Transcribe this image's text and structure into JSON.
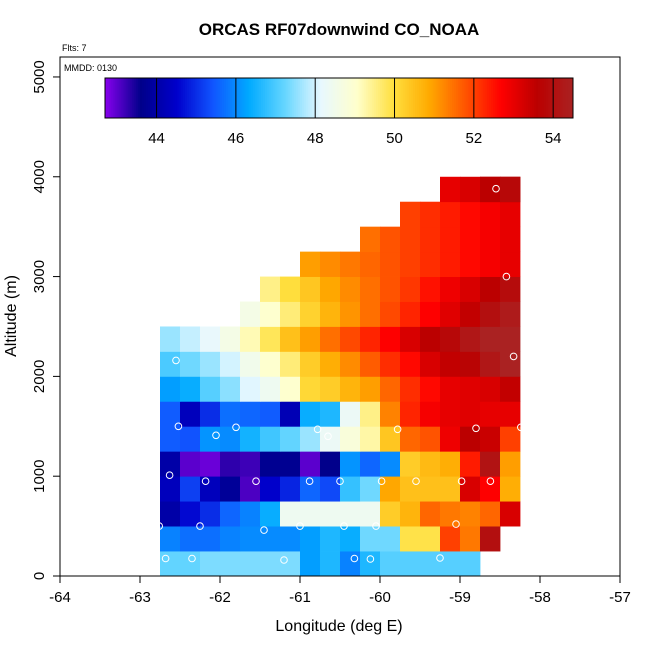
{
  "chart_data": {
    "type": "heatmap",
    "title": "ORCAS RF07downwind CO_NOAA",
    "flts_label": "Flts: 7",
    "mmdd_label": "MMDD: 0130",
    "xlabel": "Longitude (deg E)",
    "ylabel": "Altitude (m)",
    "xlim": [
      -64,
      -57
    ],
    "ylim": [
      0,
      5200
    ],
    "x_ticks": [
      -64,
      -63,
      -62,
      -61,
      -60,
      -59,
      -58,
      -57
    ],
    "y_ticks": [
      0,
      1000,
      2000,
      3000,
      4000,
      5000
    ],
    "cell_width_deg": 0.25,
    "cell_height_m": 250,
    "colorbar": {
      "range": [
        42.7,
        54.5
      ],
      "ticks": [
        44,
        46,
        48,
        50,
        52,
        54
      ],
      "colors": [
        "#8800ee",
        "#00008a",
        "#0000cc",
        "#1155ff",
        "#00aaff",
        "#66d6ff",
        "#e8f8ff",
        "#ffffcc",
        "#ffe040",
        "#ffaa00",
        "#ff5500",
        "#ff0000",
        "#bb0000",
        "#aa2222"
      ]
    },
    "rows": [
      {
        "alt": 125,
        "x0": -62.75,
        "values": [
          47.2,
          47.2,
          47.4,
          47.4,
          47.4,
          47.4,
          47.4,
          46.2,
          46.6,
          45.9,
          46.6,
          47.1,
          47.1,
          47.1,
          47.1,
          47.1
        ]
      },
      {
        "alt": 375,
        "x0": -62.75,
        "values": [
          45.9,
          45.7,
          45.7,
          45.9,
          46.0,
          46.0,
          46.0,
          46.2,
          46.6,
          46.4,
          47.3,
          47.3,
          49.9,
          49.9,
          52.0,
          51.4,
          54.0
        ]
      },
      {
        "alt": 625,
        "x0": -62.75,
        "values": [
          44.0,
          44.6,
          45.0,
          45.6,
          45.9,
          46.4,
          48.4,
          48.4,
          48.4,
          48.4,
          48.4,
          50.3,
          50.7,
          51.6,
          51.4,
          51.3,
          51.6,
          53.2
        ]
      },
      {
        "alt": 875,
        "x0": -62.75,
        "values": [
          44.3,
          45.2,
          44.3,
          43.8,
          43.1,
          44.5,
          44.9,
          45.6,
          45.3,
          46.8,
          47.3,
          50.9,
          50.5,
          50.5,
          50.5,
          53.2,
          52.7,
          50.8
        ]
      },
      {
        "alt": 1125,
        "x0": -62.75,
        "values": [
          44.0,
          43.0,
          42.9,
          43.3,
          43.2,
          43.7,
          43.7,
          43.0,
          43.6,
          46.1,
          45.6,
          46.0,
          50.3,
          50.6,
          50.8,
          52.4,
          54.1,
          51.0
        ]
      },
      {
        "alt": 1375,
        "x0": -62.75,
        "values": [
          45.5,
          45.4,
          46.1,
          46.0,
          46.5,
          46.9,
          47.2,
          47.6,
          48.3,
          48.8,
          49.3,
          50.4,
          51.6,
          51.8,
          52.9,
          53.6,
          53.4,
          52.0
        ]
      },
      {
        "alt": 1625,
        "x0": -62.75,
        "values": [
          45.5,
          44.3,
          45.0,
          45.7,
          45.6,
          45.5,
          44.2,
          46.4,
          46.6,
          48.3,
          49.5,
          51.3,
          52.3,
          52.8,
          53.0,
          53.1,
          53.0,
          53.0
        ]
      },
      {
        "alt": 1875,
        "x0": -62.75,
        "values": [
          46.2,
          46.4,
          47.1,
          47.5,
          48.1,
          48.4,
          49.0,
          50.1,
          50.3,
          50.7,
          51.0,
          51.6,
          52.2,
          52.6,
          53.0,
          53.1,
          53.2,
          53.5
        ]
      },
      {
        "alt": 2125,
        "x0": -62.75,
        "values": [
          47.0,
          47.3,
          47.6,
          48.0,
          48.5,
          49.0,
          49.6,
          50.3,
          50.8,
          51.2,
          51.7,
          52.2,
          52.6,
          53.2,
          53.5,
          53.7,
          54.2,
          54.5
        ]
      },
      {
        "alt": 2375,
        "x0": -62.75,
        "values": [
          47.6,
          47.9,
          48.2,
          48.6,
          49.2,
          49.8,
          50.5,
          51.0,
          51.5,
          51.9,
          52.3,
          52.7,
          53.2,
          53.6,
          53.8,
          54.2,
          54.5,
          54.5
        ]
      },
      {
        "alt": 2625,
        "x0": -61.75,
        "values": [
          48.6,
          49.0,
          49.6,
          50.2,
          50.7,
          51.1,
          51.5,
          51.9,
          52.3,
          52.7,
          53.1,
          53.5,
          54.0,
          54.3
        ]
      },
      {
        "alt": 2875,
        "x0": -61.5,
        "values": [
          49.5,
          50.0,
          50.4,
          50.9,
          51.2,
          51.5,
          51.8,
          52.1,
          52.5,
          52.9,
          53.2,
          53.6,
          53.9
        ]
      },
      {
        "alt": 3125,
        "x0": -61.0,
        "values": [
          51.0,
          51.2,
          51.4,
          51.6,
          51.8,
          52.0,
          52.2,
          52.4,
          52.6,
          52.8,
          53.0
        ]
      },
      {
        "alt": 3375,
        "x0": -60.25,
        "values": [
          51.5,
          51.8,
          52.0,
          52.2,
          52.4,
          52.6,
          52.8,
          53.0
        ]
      },
      {
        "alt": 3625,
        "x0": -59.75,
        "values": [
          52.0,
          52.2,
          52.4,
          52.6,
          52.8,
          53.0
        ]
      },
      {
        "alt": 3875,
        "x0": -59.25,
        "values": [
          53.0,
          53.2,
          53.4,
          53.6
        ]
      },
      {
        "alt": 3875,
        "x0": -58.75,
        "values": [
          53.6,
          53.8
        ]
      }
    ],
    "points": [
      {
        "lon": -62.76,
        "alt": 500
      },
      {
        "lon": -62.68,
        "alt": 175
      },
      {
        "lon": -62.63,
        "alt": 1010
      },
      {
        "lon": -62.55,
        "alt": 2160
      },
      {
        "lon": -62.52,
        "alt": 1500
      },
      {
        "lon": -62.35,
        "alt": 175
      },
      {
        "lon": -62.25,
        "alt": 500
      },
      {
        "lon": -62.18,
        "alt": 950
      },
      {
        "lon": -62.05,
        "alt": 1410
      },
      {
        "lon": -61.8,
        "alt": 1490
      },
      {
        "lon": -61.55,
        "alt": 950
      },
      {
        "lon": -61.45,
        "alt": 460
      },
      {
        "lon": -61.2,
        "alt": 160
      },
      {
        "lon": -61.0,
        "alt": 500
      },
      {
        "lon": -60.88,
        "alt": 950
      },
      {
        "lon": -60.78,
        "alt": 1470
      },
      {
        "lon": -60.65,
        "alt": 1400
      },
      {
        "lon": -60.5,
        "alt": 950
      },
      {
        "lon": -60.45,
        "alt": 500
      },
      {
        "lon": -60.32,
        "alt": 175
      },
      {
        "lon": -60.12,
        "alt": 170
      },
      {
        "lon": -60.05,
        "alt": 500
      },
      {
        "lon": -59.98,
        "alt": 950
      },
      {
        "lon": -59.78,
        "alt": 1470
      },
      {
        "lon": -59.55,
        "alt": 950
      },
      {
        "lon": -59.25,
        "alt": 180
      },
      {
        "lon": -59.05,
        "alt": 520
      },
      {
        "lon": -58.98,
        "alt": 950
      },
      {
        "lon": -58.8,
        "alt": 1480
      },
      {
        "lon": -58.62,
        "alt": 950
      },
      {
        "lon": -58.55,
        "alt": 3880
      },
      {
        "lon": -58.42,
        "alt": 3000
      },
      {
        "lon": -58.4,
        "alt": 400
      },
      {
        "lon": -58.38,
        "alt": 280
      },
      {
        "lon": -58.33,
        "alt": 2200
      },
      {
        "lon": -58.24,
        "alt": 1490
      },
      {
        "lon": -58.2,
        "alt": 380
      },
      {
        "lon": -58.12,
        "alt": 950
      }
    ]
  }
}
